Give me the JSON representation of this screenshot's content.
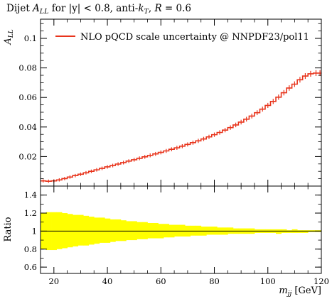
{
  "chart_data": [
    {
      "type": "step",
      "title": "Dijet A_LL for |y| < 0.8, anti-k_T, R = 0.6",
      "title_parts": {
        "prefix": "Dijet ",
        "sym": "A",
        "sub": "LL",
        "mid": " for |y| < 0.8, anti-",
        "k": "k",
        "ksub": "T",
        "after": ", ",
        "R": "R",
        "tail": " = 0.6"
      },
      "ylabel": "A_LL",
      "ylabel_parts": {
        "sym": "A",
        "sub": "LL"
      },
      "xlim": [
        15,
        120
      ],
      "ylim": [
        0,
        0.113
      ],
      "yticks": [
        "0.02",
        "0.04",
        "0.06",
        "0.08",
        "0.1"
      ],
      "yticks_values": [
        0.02,
        0.04,
        0.06,
        0.08,
        0.1
      ],
      "legend": {
        "position": "top-left",
        "label": "NLO pQCD scale uncertainty @ NNPDF23/pol11"
      },
      "series_color": "#e8341c",
      "series": [
        {
          "name": "NLO pQCD scale uncertainty @ NNPDF23/pol11",
          "bins": [
            15,
            17,
            19,
            21,
            23,
            25,
            27,
            29,
            31,
            33,
            35,
            37,
            39,
            41,
            43,
            45,
            47,
            49,
            51,
            53,
            55,
            57,
            59,
            61,
            63,
            65,
            67,
            69,
            71,
            73,
            75,
            77,
            79,
            81,
            83,
            85,
            87,
            89,
            91,
            93,
            95,
            97,
            99,
            101,
            103,
            105,
            107,
            109,
            111,
            113,
            115,
            117,
            119,
            120
          ],
          "values": [
            0.0035,
            0.0033,
            0.0035,
            0.0042,
            0.0051,
            0.0061,
            0.0071,
            0.008,
            0.009,
            0.01,
            0.011,
            0.012,
            0.013,
            0.0139,
            0.0149,
            0.0159,
            0.0169,
            0.0178,
            0.0188,
            0.0198,
            0.0208,
            0.0218,
            0.0228,
            0.0238,
            0.0249,
            0.0259,
            0.027,
            0.0282,
            0.0294,
            0.0306,
            0.0319,
            0.0333,
            0.0348,
            0.0363,
            0.0379,
            0.0396,
            0.0414,
            0.0433,
            0.0453,
            0.0474,
            0.0497,
            0.0521,
            0.0546,
            0.0573,
            0.0602,
            0.0632,
            0.0664,
            0.069,
            0.072,
            0.0745,
            0.076,
            0.0765,
            0.0765
          ]
        }
      ]
    },
    {
      "type": "area",
      "ylabel": "Ratio",
      "xlabel": "m_jj [GeV]",
      "xlabel_parts": {
        "sym": "m",
        "sub": "jj",
        "unit": " [GeV]"
      },
      "xlim": [
        15,
        120
      ],
      "ylim": [
        0.53,
        1.5
      ],
      "xticks": [
        "20",
        "40",
        "60",
        "80",
        "100",
        "120"
      ],
      "xticks_values": [
        20,
        40,
        60,
        80,
        100,
        120
      ],
      "yticks": [
        "0.6",
        "0.8",
        "1",
        "1.2",
        "1.4"
      ],
      "yticks_values": [
        0.6,
        0.8,
        1.0,
        1.2,
        1.4
      ],
      "band_color": "#ffff00",
      "reference_line": 1.0,
      "series": [
        {
          "bins": [
            15,
            17,
            19,
            21,
            23,
            25,
            27,
            29,
            31,
            33,
            35,
            37,
            39,
            41,
            43,
            45,
            47,
            49,
            51,
            53,
            55,
            57,
            59,
            61,
            63,
            65,
            67,
            69,
            71,
            73,
            75,
            77,
            79,
            81,
            83,
            85,
            87,
            89,
            91,
            93,
            95,
            97,
            99,
            101,
            103,
            105,
            107,
            109,
            111,
            113,
            115,
            117,
            119,
            120
          ],
          "upper": [
            1.2,
            1.21,
            1.21,
            1.21,
            1.2,
            1.19,
            1.18,
            1.18,
            1.17,
            1.16,
            1.15,
            1.15,
            1.14,
            1.13,
            1.13,
            1.12,
            1.11,
            1.11,
            1.1,
            1.1,
            1.09,
            1.09,
            1.08,
            1.08,
            1.07,
            1.07,
            1.07,
            1.06,
            1.06,
            1.06,
            1.05,
            1.05,
            1.05,
            1.04,
            1.04,
            1.04,
            1.03,
            1.03,
            1.03,
            1.03,
            1.02,
            1.02,
            1.02,
            1.02,
            1.02,
            1.02,
            1.01,
            1.02,
            1.01,
            1.01,
            1.01,
            1.01,
            1.01
          ],
          "lower": [
            0.8,
            0.79,
            0.79,
            0.8,
            0.81,
            0.82,
            0.83,
            0.84,
            0.84,
            0.85,
            0.86,
            0.87,
            0.87,
            0.88,
            0.89,
            0.89,
            0.9,
            0.9,
            0.91,
            0.91,
            0.92,
            0.92,
            0.92,
            0.93,
            0.93,
            0.94,
            0.94,
            0.94,
            0.95,
            0.95,
            0.95,
            0.96,
            0.96,
            0.96,
            0.96,
            0.97,
            0.97,
            0.97,
            0.97,
            0.97,
            0.98,
            0.98,
            0.98,
            0.98,
            0.97,
            0.98,
            0.98,
            0.98,
            0.98,
            0.98,
            0.99,
            0.99,
            0.99
          ]
        }
      ]
    }
  ]
}
